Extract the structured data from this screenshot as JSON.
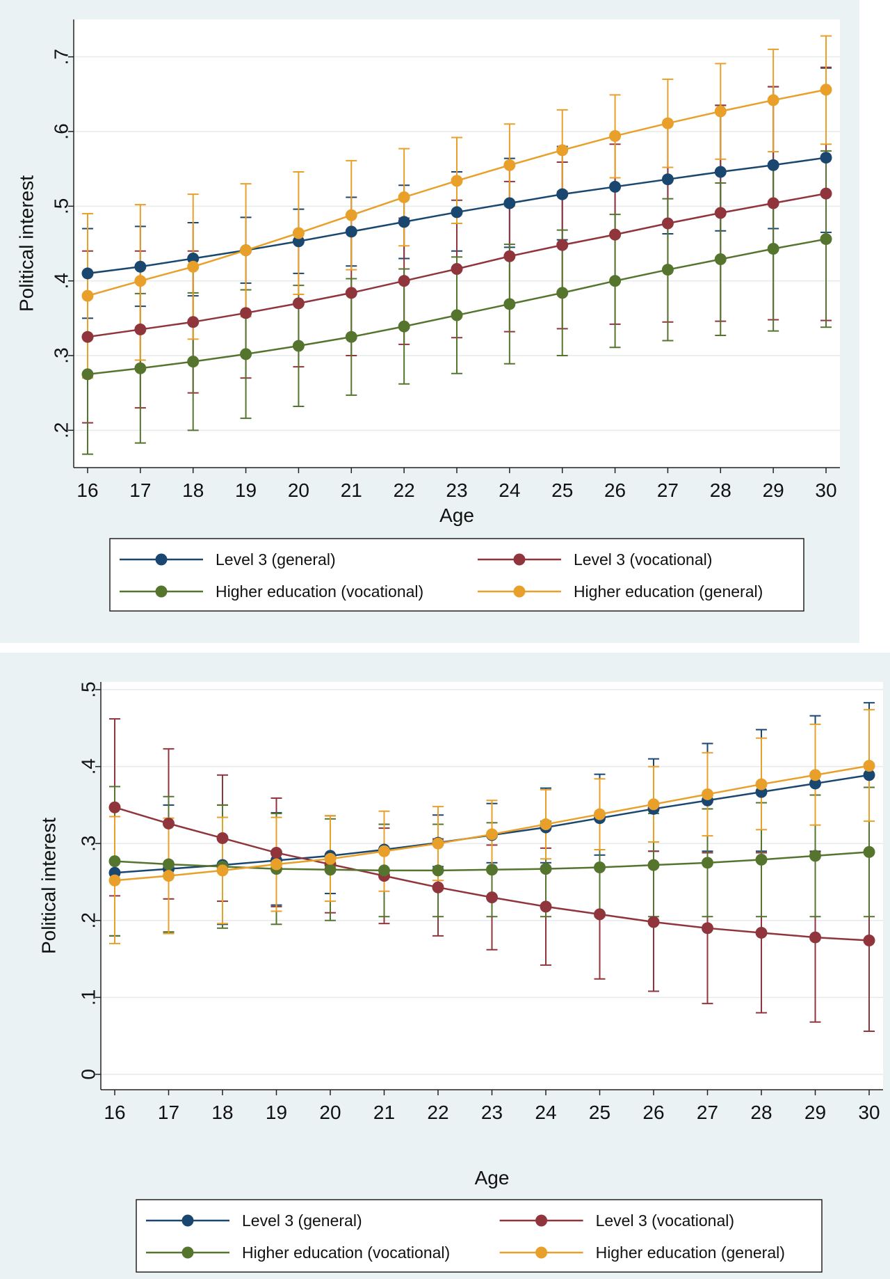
{
  "chart_data": [
    {
      "type": "line",
      "title": "",
      "xlabel": "Age",
      "ylabel": "Political interest",
      "categories": [
        "16",
        "17",
        "18",
        "19",
        "20",
        "21",
        "22",
        "23",
        "24",
        "25",
        "26",
        "27",
        "28",
        "29",
        "30"
      ],
      "ylim": [
        0.15,
        0.75
      ],
      "yticks": [
        0.2,
        0.3,
        0.4,
        0.5,
        0.6,
        0.7
      ],
      "ytick_labels": [
        ".2",
        ".3",
        ".4",
        ".5",
        ".6",
        ".7"
      ],
      "grid": true,
      "legend_position": "bottom",
      "series": [
        {
          "name": "Level 3 (general)",
          "color": "#1a476f",
          "values": [
            0.41,
            0.419,
            0.43,
            0.441,
            0.453,
            0.466,
            0.479,
            0.492,
            0.504,
            0.516,
            0.526,
            0.536,
            0.546,
            0.555,
            0.565
          ],
          "lower": [
            0.35,
            0.366,
            0.38,
            0.397,
            0.41,
            0.42,
            0.43,
            0.44,
            0.445,
            0.455,
            0.46,
            0.463,
            0.467,
            0.47,
            0.465
          ],
          "upper": [
            0.47,
            0.473,
            0.478,
            0.485,
            0.496,
            0.512,
            0.528,
            0.546,
            0.564,
            0.58,
            0.594,
            0.612,
            0.635,
            0.66,
            0.685
          ]
        },
        {
          "name": "Level 3 (vocational)",
          "color": "#90353b",
          "values": [
            0.325,
            0.335,
            0.345,
            0.357,
            0.37,
            0.384,
            0.4,
            0.416,
            0.433,
            0.448,
            0.462,
            0.477,
            0.491,
            0.504,
            0.517
          ],
          "lower": [
            0.21,
            0.23,
            0.25,
            0.27,
            0.285,
            0.3,
            0.315,
            0.324,
            0.332,
            0.336,
            0.342,
            0.345,
            0.346,
            0.348,
            0.347
          ],
          "upper": [
            0.44,
            0.44,
            0.44,
            0.443,
            0.453,
            0.467,
            0.484,
            0.508,
            0.533,
            0.559,
            0.583,
            0.609,
            0.635,
            0.66,
            0.686
          ]
        },
        {
          "name": "Higher education (vocational)",
          "color": "#55752f",
          "values": [
            0.275,
            0.283,
            0.292,
            0.302,
            0.313,
            0.325,
            0.339,
            0.354,
            0.369,
            0.384,
            0.4,
            0.415,
            0.429,
            0.443,
            0.456
          ],
          "lower": [
            0.168,
            0.183,
            0.2,
            0.216,
            0.232,
            0.247,
            0.262,
            0.276,
            0.289,
            0.3,
            0.311,
            0.32,
            0.327,
            0.333,
            0.338
          ],
          "upper": [
            0.382,
            0.383,
            0.384,
            0.388,
            0.394,
            0.403,
            0.416,
            0.432,
            0.449,
            0.468,
            0.489,
            0.51,
            0.531,
            0.553,
            0.574
          ]
        },
        {
          "name": "Higher education (general)",
          "color": "#e8a02a",
          "values": [
            0.38,
            0.4,
            0.419,
            0.441,
            0.464,
            0.488,
            0.512,
            0.534,
            0.555,
            0.575,
            0.594,
            0.611,
            0.627,
            0.642,
            0.656
          ],
          "lower": [
            0.27,
            0.294,
            0.322,
            0.352,
            0.382,
            0.415,
            0.447,
            0.477,
            0.5,
            0.52,
            0.538,
            0.552,
            0.563,
            0.573,
            0.583
          ],
          "upper": [
            0.49,
            0.502,
            0.516,
            0.53,
            0.546,
            0.561,
            0.577,
            0.592,
            0.61,
            0.629,
            0.649,
            0.67,
            0.691,
            0.71,
            0.728
          ]
        }
      ]
    },
    {
      "type": "line",
      "title": "",
      "xlabel": "Age",
      "ylabel": "Political interest",
      "categories": [
        "16",
        "17",
        "18",
        "19",
        "20",
        "21",
        "22",
        "23",
        "24",
        "25",
        "26",
        "27",
        "28",
        "29",
        "30"
      ],
      "ylim": [
        -0.02,
        0.51
      ],
      "yticks": [
        0,
        0.1,
        0.2,
        0.3,
        0.4,
        0.5
      ],
      "ytick_labels": [
        "0",
        ".1",
        ".2",
        ".3",
        ".4",
        ".5"
      ],
      "grid": true,
      "legend_position": "bottom",
      "series": [
        {
          "name": "Level 3 (general)",
          "color": "#1a476f",
          "values": [
            0.262,
            0.267,
            0.272,
            0.278,
            0.284,
            0.292,
            0.301,
            0.311,
            0.321,
            0.333,
            0.345,
            0.356,
            0.367,
            0.378,
            0.389
          ],
          "lower": [
            0.18,
            0.185,
            0.195,
            0.22,
            0.235,
            0.26,
            0.27,
            0.275,
            0.275,
            0.285,
            0.29,
            0.29,
            0.29,
            0.29,
            0.29
          ],
          "upper": [
            0.345,
            0.35,
            0.35,
            0.34,
            0.336,
            0.325,
            0.337,
            0.352,
            0.372,
            0.39,
            0.41,
            0.43,
            0.448,
            0.466,
            0.483
          ]
        },
        {
          "name": "Level 3 (vocational)",
          "color": "#90353b",
          "values": [
            0.347,
            0.326,
            0.307,
            0.288,
            0.273,
            0.258,
            0.243,
            0.23,
            0.218,
            0.208,
            0.198,
            0.19,
            0.184,
            0.178,
            0.174
          ],
          "lower": [
            0.232,
            0.228,
            0.225,
            0.218,
            0.21,
            0.196,
            0.18,
            0.162,
            0.142,
            0.124,
            0.108,
            0.092,
            0.08,
            0.068,
            0.056
          ],
          "upper": [
            0.462,
            0.423,
            0.389,
            0.359,
            0.336,
            0.32,
            0.306,
            0.298,
            0.294,
            0.292,
            0.29,
            0.288,
            0.288,
            0.289,
            0.29
          ]
        },
        {
          "name": "Higher education (vocational)",
          "color": "#55752f",
          "values": [
            0.277,
            0.273,
            0.27,
            0.267,
            0.266,
            0.265,
            0.265,
            0.266,
            0.267,
            0.269,
            0.272,
            0.275,
            0.279,
            0.284,
            0.289
          ],
          "lower": [
            0.18,
            0.185,
            0.19,
            0.195,
            0.2,
            0.205,
            0.205,
            0.205,
            0.205,
            0.205,
            0.205,
            0.205,
            0.205,
            0.205,
            0.205
          ],
          "upper": [
            0.374,
            0.361,
            0.35,
            0.339,
            0.332,
            0.325,
            0.325,
            0.327,
            0.329,
            0.333,
            0.339,
            0.345,
            0.353,
            0.363,
            0.373
          ]
        },
        {
          "name": "Higher education (general)",
          "color": "#e8a02a",
          "values": [
            0.252,
            0.258,
            0.265,
            0.273,
            0.28,
            0.29,
            0.3,
            0.312,
            0.325,
            0.338,
            0.351,
            0.364,
            0.377,
            0.389,
            0.401
          ],
          "lower": [
            0.17,
            0.183,
            0.196,
            0.212,
            0.225,
            0.238,
            0.252,
            0.268,
            0.28,
            0.292,
            0.302,
            0.31,
            0.318,
            0.324,
            0.329
          ],
          "upper": [
            0.335,
            0.333,
            0.334,
            0.334,
            0.336,
            0.342,
            0.348,
            0.356,
            0.37,
            0.384,
            0.4,
            0.418,
            0.437,
            0.455,
            0.474
          ]
        }
      ]
    }
  ]
}
